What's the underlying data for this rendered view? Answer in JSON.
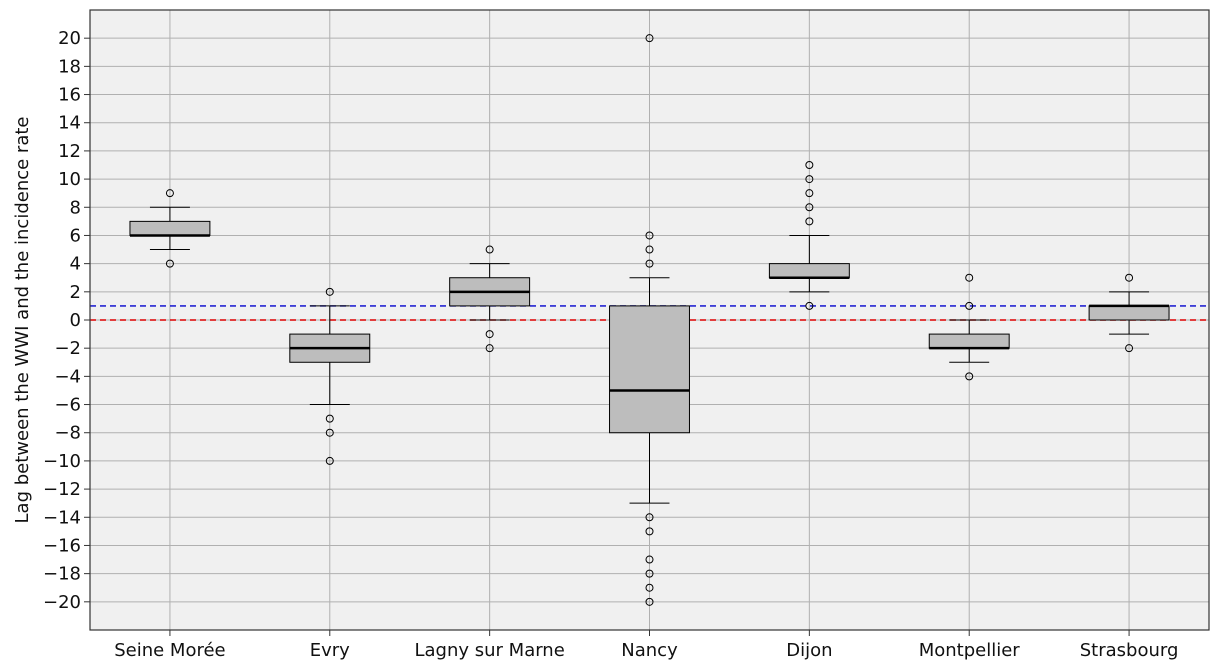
{
  "chart_data": {
    "type": "box",
    "title": "",
    "xlabel": "",
    "ylabel": "Lag between the WWI and the incidence rate",
    "ylim": [
      -22,
      22
    ],
    "yticks": [
      -20,
      -18,
      -16,
      -14,
      -12,
      -10,
      -8,
      -6,
      -4,
      -2,
      0,
      2,
      4,
      6,
      8,
      10,
      12,
      14,
      16,
      18,
      20
    ],
    "grid": true,
    "categories": [
      "Seine Morée",
      "Evry",
      "Lagny sur Marne",
      "Nancy",
      "Dijon",
      "Montpellier",
      "Strasbourg"
    ],
    "boxes": [
      {
        "q1": 6,
        "median": 6,
        "q3": 7,
        "whisker_low": 5,
        "whisker_high": 8,
        "outliers": [
          9,
          4
        ]
      },
      {
        "q1": -3,
        "median": -2,
        "q3": -1,
        "whisker_low": -6,
        "whisker_high": 1,
        "outliers": [
          2,
          -7,
          -8,
          -10
        ]
      },
      {
        "q1": 1,
        "median": 2,
        "q3": 3,
        "whisker_low": 0,
        "whisker_high": 4,
        "outliers": [
          5,
          -1,
          -2
        ]
      },
      {
        "q1": -8,
        "median": -5,
        "q3": 1,
        "whisker_low": -13,
        "whisker_high": 3,
        "outliers": [
          20,
          6,
          5,
          4,
          -14,
          -15,
          -17,
          -18,
          -19,
          -20
        ]
      },
      {
        "q1": 3,
        "median": 3,
        "q3": 4,
        "whisker_low": 2,
        "whisker_high": 6,
        "outliers": [
          11,
          10,
          9,
          8,
          7,
          1
        ]
      },
      {
        "q1": -2,
        "median": -2,
        "q3": -1,
        "whisker_low": -3,
        "whisker_high": 0,
        "outliers": [
          3,
          1,
          -4
        ]
      },
      {
        "q1": 0,
        "median": 1,
        "q3": 1,
        "whisker_low": -1,
        "whisker_high": 2,
        "outliers": [
          3,
          -2
        ]
      }
    ],
    "reference_lines": [
      {
        "y": 1,
        "color": "#0000cc",
        "style": "dashed"
      },
      {
        "y": 0,
        "color": "#dd0000",
        "style": "dashed"
      }
    ],
    "colors": {
      "box_fill": "#bdbdbd",
      "plot_background": "#f0f0f0",
      "grid": "#b0b0b0",
      "median": "#000000"
    }
  }
}
